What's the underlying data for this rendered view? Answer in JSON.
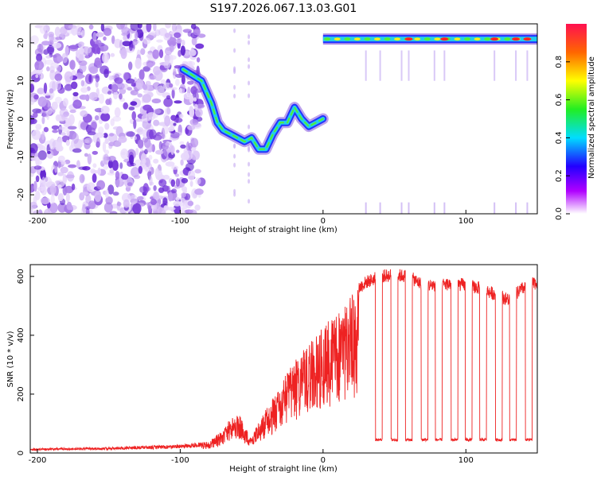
{
  "title": "S197.2026.067.13.03.G01",
  "colors": {
    "line": "#ee2222",
    "axis": "#000000",
    "scatter": "#7a2ee0",
    "track_blue": "#2233ff",
    "track_cyan": "#22ccee",
    "track_green": "#55ee33",
    "track_yellow": "#ffee22",
    "track_red": "#ff2222"
  },
  "chart_data": [
    {
      "type": "heatmap",
      "title": "S197.2026.067.13.03.G01",
      "xlabel": "Height of straight line (km)",
      "ylabel": "Frequency (Hz)",
      "xlim": [
        -205,
        150
      ],
      "ylim": [
        -25,
        25
      ],
      "x_ticks": [
        -200,
        -100,
        0,
        100
      ],
      "y_ticks": [
        -20,
        -10,
        0,
        10,
        20
      ],
      "colorbar": {
        "label": "Normalized spectral amplitude",
        "range": [
          0,
          1
        ],
        "ticks": [
          0.0,
          0.2,
          0.4,
          0.6,
          0.8
        ],
        "tick_labels": [
          "0.0",
          "0.2",
          "0.4",
          "0.6",
          "0.8"
        ]
      },
      "noise_region_x": [
        -205,
        -85
      ],
      "track_left": {
        "x": [
          -98,
          -85,
          -78,
          -74,
          -70,
          -65,
          -60,
          -55,
          -50,
          -45,
          -40,
          -35,
          -30,
          -25,
          -20,
          -15,
          -10,
          -5,
          0
        ],
        "y": [
          13,
          10,
          4,
          -1,
          -3,
          -4,
          -5,
          -6,
          -5,
          -8,
          -8,
          -4,
          -1,
          -1,
          3,
          0,
          -2,
          -1,
          0
        ]
      },
      "track_right": {
        "x_range": [
          0,
          150
        ],
        "y": 21,
        "peaks_x": [
          60,
          85,
          120,
          135,
          143
        ]
      }
    },
    {
      "type": "line",
      "xlabel": "Height of straight line (km)",
      "ylabel": "SNR (10 * v/v)",
      "xlim": [
        -205,
        150
      ],
      "ylim": [
        0,
        640
      ],
      "x_ticks": [
        -200,
        -100,
        0,
        100
      ],
      "y_ticks": [
        0,
        200,
        400,
        600
      ],
      "series": [
        {
          "name": "SNR",
          "envelope_x": [
            -205,
            -150,
            -100,
            -80,
            -70,
            -60,
            -55,
            -50,
            -45,
            -40,
            -30,
            -20,
            -10,
            0,
            10,
            20,
            30,
            40,
            50,
            60,
            70,
            80,
            90,
            100,
            110,
            120,
            130,
            140,
            150
          ],
          "envelope_y": [
            15,
            20,
            28,
            40,
            80,
            150,
            90,
            60,
            110,
            150,
            230,
            320,
            370,
            430,
            480,
            540,
            580,
            600,
            605,
            600,
            570,
            570,
            575,
            570,
            560,
            540,
            520,
            560,
            580
          ],
          "dropouts": [
            {
              "x": 39,
              "y": 45
            },
            {
              "x": 50,
              "y": 45
            },
            {
              "x": 60,
              "y": 45
            },
            {
              "x": 71,
              "y": 45
            },
            {
              "x": 81,
              "y": 45
            },
            {
              "x": 92,
              "y": 45
            },
            {
              "x": 102,
              "y": 45
            },
            {
              "x": 112,
              "y": 45
            },
            {
              "x": 123,
              "y": 45
            },
            {
              "x": 133,
              "y": 45
            },
            {
              "x": 144,
              "y": 45
            }
          ]
        }
      ]
    }
  ]
}
